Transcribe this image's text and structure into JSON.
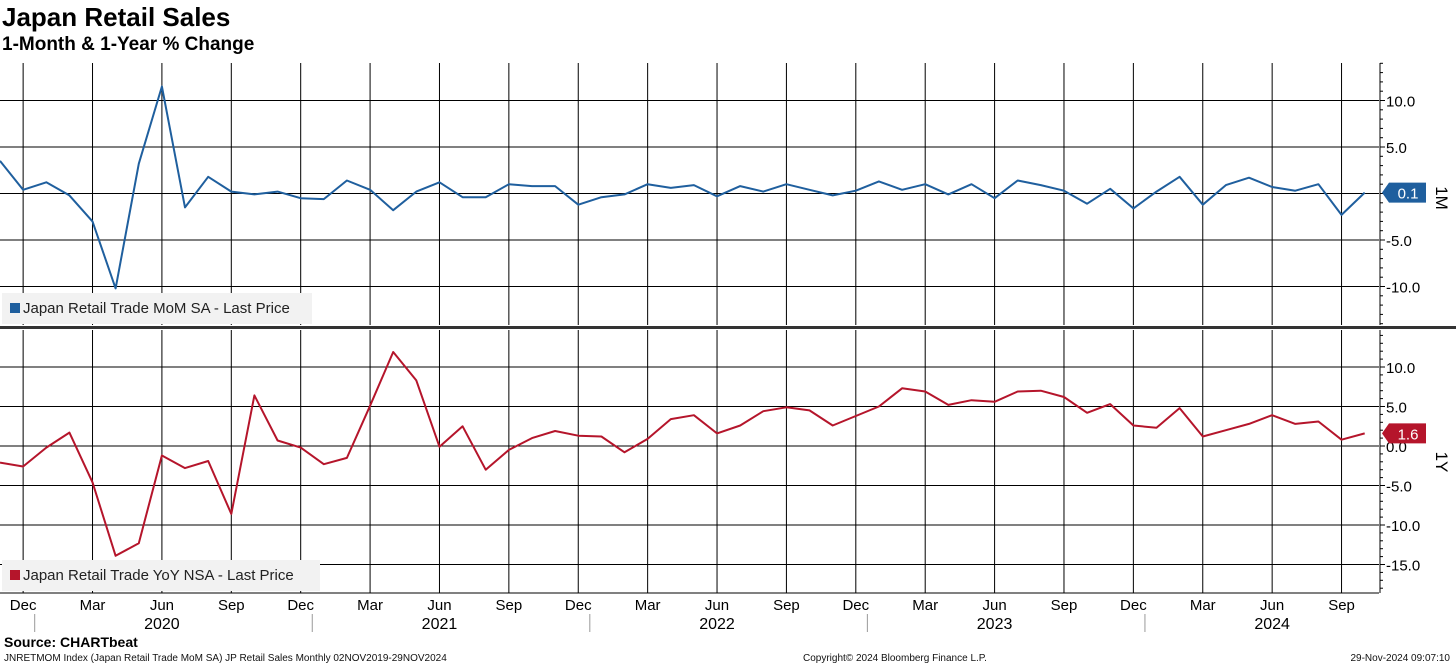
{
  "header": {
    "title": "Japan Retail Sales",
    "subtitle": "1-Month & 1-Year % Change"
  },
  "footer": {
    "source": "Source: CHARTbeat",
    "index_note": "JNRETMOM Index (Japan Retail Trade MoM SA) JP Retail Sales  Monthly 02NOV2019-29NOV2024",
    "copyright": "Copyright© 2024 Bloomberg Finance L.P.",
    "timestamp": "29-Nov-2024 09:07:10"
  },
  "colors": {
    "mom": "#1f5f9e",
    "yoy": "#b5152b",
    "grid": "#000000",
    "panel_divider": "#333333"
  },
  "chart_data": [
    {
      "type": "line",
      "panel": "top",
      "axis_label": "1M",
      "legend": "Japan Retail Trade MoM SA - Last Price",
      "legend_placement": "bottom-left",
      "last_value_label": "0.1",
      "ylim": [
        -14,
        14
      ],
      "yticks": [
        10.0,
        5.0,
        0.0,
        -5.0,
        -10.0
      ],
      "ytick_labels": [
        "10.0",
        "5.0",
        "",
        "-5.0",
        "-10.0"
      ],
      "x_start": "2019-11",
      "x_end": "2024-10",
      "values": [
        3.5,
        0.4,
        1.2,
        -0.2,
        -3.0,
        -10.2,
        3.2,
        11.5,
        -1.5,
        1.8,
        0.2,
        -0.1,
        0.2,
        -0.5,
        -0.6,
        1.4,
        0.4,
        -1.8,
        0.2,
        1.2,
        -0.4,
        -0.4,
        1.0,
        0.8,
        0.8,
        -1.2,
        -0.4,
        -0.1,
        1.0,
        0.6,
        0.9,
        -0.3,
        0.8,
        0.2,
        1.0,
        0.4,
        -0.2,
        0.3,
        1.3,
        0.4,
        1.0,
        -0.1,
        1.0,
        -0.5,
        1.4,
        0.9,
        0.3,
        -1.1,
        0.5,
        -1.6,
        0.2,
        1.8,
        -1.2,
        0.9,
        1.7,
        0.7,
        0.3,
        1.0,
        -2.3,
        0.1
      ]
    },
    {
      "type": "line",
      "panel": "bottom",
      "axis_label": "1Y",
      "legend": "Japan Retail Trade YoY NSA - Last Price",
      "legend_placement": "bottom-left",
      "last_value_label": "1.6",
      "ylim": [
        -18.5,
        14
      ],
      "yticks": [
        10.0,
        5.0,
        0.0,
        -5.0,
        -10.0,
        -15.0
      ],
      "ytick_labels": [
        "10.0",
        "5.0",
        "0.0",
        "-5.0",
        "-10.0",
        "-15.0"
      ],
      "x_start": "2019-11",
      "x_end": "2024-10",
      "values": [
        -2.1,
        -2.6,
        -0.2,
        1.7,
        -4.6,
        -13.9,
        -12.3,
        -1.2,
        -2.8,
        -1.9,
        -8.6,
        6.4,
        0.7,
        -0.2,
        -2.3,
        -1.5,
        5.1,
        11.9,
        8.3,
        -0.1,
        2.5,
        -3.0,
        -0.5,
        1.0,
        1.9,
        1.3,
        1.2,
        -0.8,
        0.9,
        3.4,
        3.9,
        1.6,
        2.6,
        4.4,
        4.9,
        4.5,
        2.6,
        3.8,
        5.0,
        7.3,
        6.9,
        5.2,
        5.8,
        5.6,
        6.9,
        7.0,
        6.2,
        4.2,
        5.3,
        2.6,
        2.3,
        4.8,
        1.2,
        2.0,
        2.8,
        3.9,
        2.8,
        3.1,
        0.8,
        1.6
      ]
    }
  ],
  "x_axis": {
    "month_labels": [
      "Dec",
      "Mar",
      "Jun",
      "Sep",
      "Dec",
      "Mar",
      "Jun",
      "Sep",
      "Dec",
      "Mar",
      "Jun",
      "Sep",
      "Dec",
      "Mar",
      "Jun",
      "Sep",
      "Dec",
      "Mar",
      "Jun",
      "Sep"
    ],
    "year_labels": [
      "2020",
      "2021",
      "2022",
      "2023",
      "2024"
    ]
  }
}
